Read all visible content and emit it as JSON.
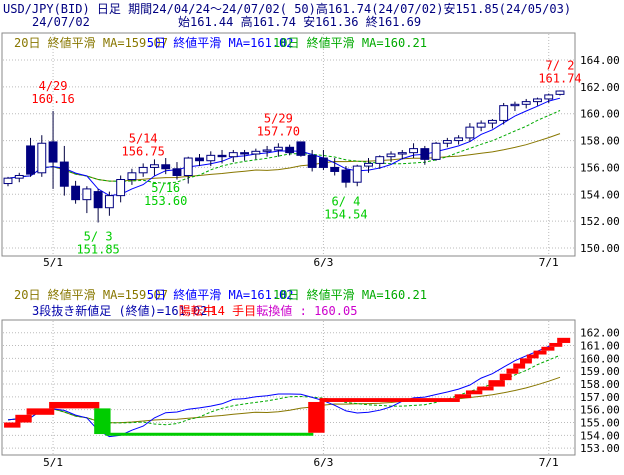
{
  "header": {
    "line1": "USD/JPY(BID) 日足 期間24/04/24～24/07/02( 50)高161.74(24/07/02)安151.85(24/05/03)",
    "date": "24/07/02",
    "ohlc": "始161.44 高161.74 安161.36 終161.69"
  },
  "colors": {
    "up": "#0000ff",
    "down": "#0000cc",
    "ma5": "#0000ff",
    "ma10": "#00aa00",
    "ma20": "#887700",
    "red": "#ff0000",
    "green": "#00cc00",
    "magenta": "#cc00cc"
  },
  "chart_data": [
    {
      "type": "candlestick",
      "ylim": [
        150,
        165
      ],
      "yticks": [
        150,
        152,
        154,
        156,
        158,
        160,
        162,
        164
      ],
      "ytick_labels": [
        "150.00",
        "152.00",
        "154.00",
        "156.00",
        "158.00",
        "160.00",
        "162.00",
        "164.00"
      ],
      "xticks": [
        {
          "index": 4,
          "label": "5/1"
        },
        {
          "index": 28,
          "label": "6/3"
        },
        {
          "index": 48,
          "label": "7/1"
        }
      ],
      "legend": [
        {
          "text": "20日 終値平滑 MA=159.07",
          "color": "#887700"
        },
        {
          "text": "5日 終値平滑 MA=161.02",
          "color": "#0000ff"
        },
        {
          "text": "10日 終値平滑 MA=160.21",
          "color": "#00aa00"
        }
      ],
      "candles": [
        [
          154.8,
          155.3,
          154.6,
          155.2
        ],
        [
          155.2,
          155.6,
          154.9,
          155.4
        ],
        [
          157.6,
          158.2,
          155.3,
          155.5
        ],
        [
          155.6,
          158.4,
          155.3,
          157.8
        ],
        [
          157.9,
          160.2,
          154.4,
          156.4
        ],
        [
          156.4,
          157.6,
          153.9,
          154.6
        ],
        [
          154.6,
          155.0,
          153.3,
          153.6
        ],
        [
          153.6,
          154.6,
          152.6,
          154.4
        ],
        [
          154.2,
          154.4,
          151.9,
          153.0
        ],
        [
          153.0,
          154.2,
          152.4,
          153.9
        ],
        [
          153.9,
          155.4,
          153.4,
          155.1
        ],
        [
          155.1,
          155.9,
          154.7,
          155.6
        ],
        [
          155.6,
          156.3,
          155.3,
          156.0
        ],
        [
          156.0,
          156.6,
          155.4,
          156.2
        ],
        [
          156.2,
          156.7,
          155.5,
          155.9
        ],
        [
          155.9,
          156.4,
          155.1,
          155.4
        ],
        [
          155.4,
          156.8,
          154.8,
          156.7
        ],
        [
          156.7,
          157.0,
          156.1,
          156.5
        ],
        [
          156.5,
          157.2,
          156.1,
          156.9
        ],
        [
          156.9,
          157.3,
          156.3,
          156.8
        ],
        [
          156.8,
          157.3,
          156.4,
          157.1
        ],
        [
          157.1,
          157.3,
          156.5,
          157.0
        ],
        [
          157.0,
          157.4,
          156.6,
          157.2
        ],
        [
          157.2,
          157.6,
          156.8,
          157.3
        ],
        [
          157.3,
          157.8,
          156.8,
          157.5
        ],
        [
          157.5,
          157.7,
          156.9,
          157.1
        ],
        [
          157.9,
          157.9,
          156.8,
          156.9
        ],
        [
          156.9,
          157.3,
          155.7,
          156.0
        ],
        [
          156.7,
          157.3,
          155.8,
          156.0
        ],
        [
          156.0,
          156.7,
          155.4,
          155.7
        ],
        [
          155.8,
          156.1,
          154.5,
          154.9
        ],
        [
          154.9,
          156.2,
          154.6,
          156.1
        ],
        [
          156.1,
          156.7,
          155.6,
          156.3
        ],
        [
          156.3,
          156.9,
          155.9,
          156.8
        ],
        [
          156.8,
          157.2,
          156.4,
          157.0
        ],
        [
          157.0,
          157.3,
          156.6,
          157.1
        ],
        [
          157.1,
          157.8,
          156.7,
          157.4
        ],
        [
          157.4,
          157.6,
          156.2,
          156.6
        ],
        [
          156.6,
          157.9,
          156.5,
          157.8
        ],
        [
          157.8,
          158.2,
          157.5,
          158.0
        ],
        [
          158.0,
          158.4,
          157.7,
          158.2
        ],
        [
          158.2,
          159.3,
          157.9,
          159.0
        ],
        [
          159.0,
          159.5,
          158.7,
          159.3
        ],
        [
          159.3,
          159.6,
          158.9,
          159.5
        ],
        [
          159.5,
          160.8,
          159.2,
          160.6
        ],
        [
          160.6,
          160.9,
          160.2,
          160.7
        ],
        [
          160.7,
          161.1,
          160.4,
          160.9
        ],
        [
          160.9,
          161.2,
          160.6,
          161.1
        ],
        [
          161.1,
          161.5,
          160.8,
          161.4
        ],
        [
          161.44,
          161.74,
          161.36,
          161.69
        ]
      ],
      "annotations": [
        {
          "index": 4,
          "label": "4/29",
          "value": "160.16",
          "pos": "above",
          "color": "#ff0000"
        },
        {
          "index": 8,
          "label": "5/ 3",
          "value": "151.85",
          "pos": "below",
          "color": "#00cc00"
        },
        {
          "index": 12,
          "label": "5/14",
          "value": "156.75",
          "pos": "above",
          "color": "#ff0000"
        },
        {
          "index": 14,
          "label": "5/16",
          "value": "153.60",
          "pos": "below",
          "color": "#00cc00"
        },
        {
          "index": 24,
          "label": "5/29",
          "value": "157.70",
          "pos": "above",
          "color": "#ff0000"
        },
        {
          "index": 30,
          "label": "6/ 4",
          "value": "154.54",
          "pos": "below",
          "color": "#00cc00"
        },
        {
          "index": 49,
          "label": "7/ 2",
          "value": "161.74",
          "pos": "above",
          "color": "#ff0000"
        }
      ]
    },
    {
      "type": "three-line-break",
      "ylim": [
        153,
        162.5
      ],
      "yticks": [
        153,
        154,
        155,
        156,
        157,
        158,
        159,
        160,
        161,
        162
      ],
      "ytick_labels": [
        "153.00",
        "154.00",
        "155.00",
        "156.00",
        "157.00",
        "158.00",
        "159.00",
        "160.00",
        "161.00",
        "162.00"
      ],
      "xticks": [
        {
          "index": 4,
          "label": "5/1"
        },
        {
          "index": 28,
          "label": "6/3"
        },
        {
          "index": 48,
          "label": "7/1"
        }
      ],
      "legend": [
        {
          "text": "20日 終値平滑 MA=159.07",
          "color": "#887700"
        },
        {
          "text": "5日 終値平滑 MA=161.02",
          "color": "#0000ff"
        },
        {
          "text": "10日 終値平滑 MA=160.21",
          "color": "#00aa00"
        }
      ],
      "info": [
        {
          "text": "3段抜き新値足 (終値)=161.02",
          "color": "#0000aa"
        },
        {
          "text": "陽転中",
          "color": "#ff0000"
        },
        {
          "text": "14 手目",
          "color": "#ff0000"
        },
        {
          "text": "転換値 : 160.05",
          "color": "#cc00cc"
        }
      ],
      "bricks": [
        {
          "from": 0,
          "to": 1,
          "lo": 154.6,
          "hi": 155.0,
          "dir": "up"
        },
        {
          "from": 1,
          "to": 2,
          "lo": 155.0,
          "hi": 155.6,
          "dir": "up"
        },
        {
          "from": 2,
          "to": 4,
          "lo": 155.6,
          "hi": 156.1,
          "dir": "up"
        },
        {
          "from": 4,
          "to": 8,
          "lo": 156.1,
          "hi": 156.6,
          "dir": "up"
        },
        {
          "from": 8,
          "to": 9,
          "lo": 154.1,
          "hi": 156.1,
          "dir": "down"
        },
        {
          "from": 9,
          "to": 27,
          "lo": 154.0,
          "hi": 154.2,
          "dir": "down"
        },
        {
          "from": 27,
          "to": 28,
          "lo": 154.2,
          "hi": 156.6,
          "dir": "up"
        },
        {
          "from": 28,
          "to": 40,
          "lo": 156.6,
          "hi": 156.9,
          "dir": "up"
        },
        {
          "from": 40,
          "to": 41,
          "lo": 156.9,
          "hi": 157.2,
          "dir": "up"
        },
        {
          "from": 41,
          "to": 42,
          "lo": 157.2,
          "hi": 157.5,
          "dir": "up"
        },
        {
          "from": 42,
          "to": 43,
          "lo": 157.5,
          "hi": 157.8,
          "dir": "up"
        },
        {
          "from": 43,
          "to": 44,
          "lo": 157.8,
          "hi": 158.3,
          "dir": "up"
        },
        {
          "from": 44,
          "to": 44.6,
          "lo": 158.3,
          "hi": 158.8,
          "dir": "up"
        },
        {
          "from": 44.6,
          "to": 45.2,
          "lo": 158.8,
          "hi": 159.2,
          "dir": "up"
        },
        {
          "from": 45.2,
          "to": 45.8,
          "lo": 159.2,
          "hi": 159.6,
          "dir": "up"
        },
        {
          "from": 45.8,
          "to": 46.4,
          "lo": 159.6,
          "hi": 160.0,
          "dir": "up"
        },
        {
          "from": 46.4,
          "to": 47.0,
          "lo": 160.0,
          "hi": 160.3,
          "dir": "up"
        },
        {
          "from": 47.0,
          "to": 47.7,
          "lo": 160.3,
          "hi": 160.6,
          "dir": "up"
        },
        {
          "from": 47.7,
          "to": 48.4,
          "lo": 160.6,
          "hi": 160.9,
          "dir": "up"
        },
        {
          "from": 48.4,
          "to": 49.1,
          "lo": 160.9,
          "hi": 161.2,
          "dir": "up"
        },
        {
          "from": 49.1,
          "to": 49.8,
          "lo": 161.2,
          "hi": 161.6,
          "dir": "up"
        }
      ]
    }
  ]
}
